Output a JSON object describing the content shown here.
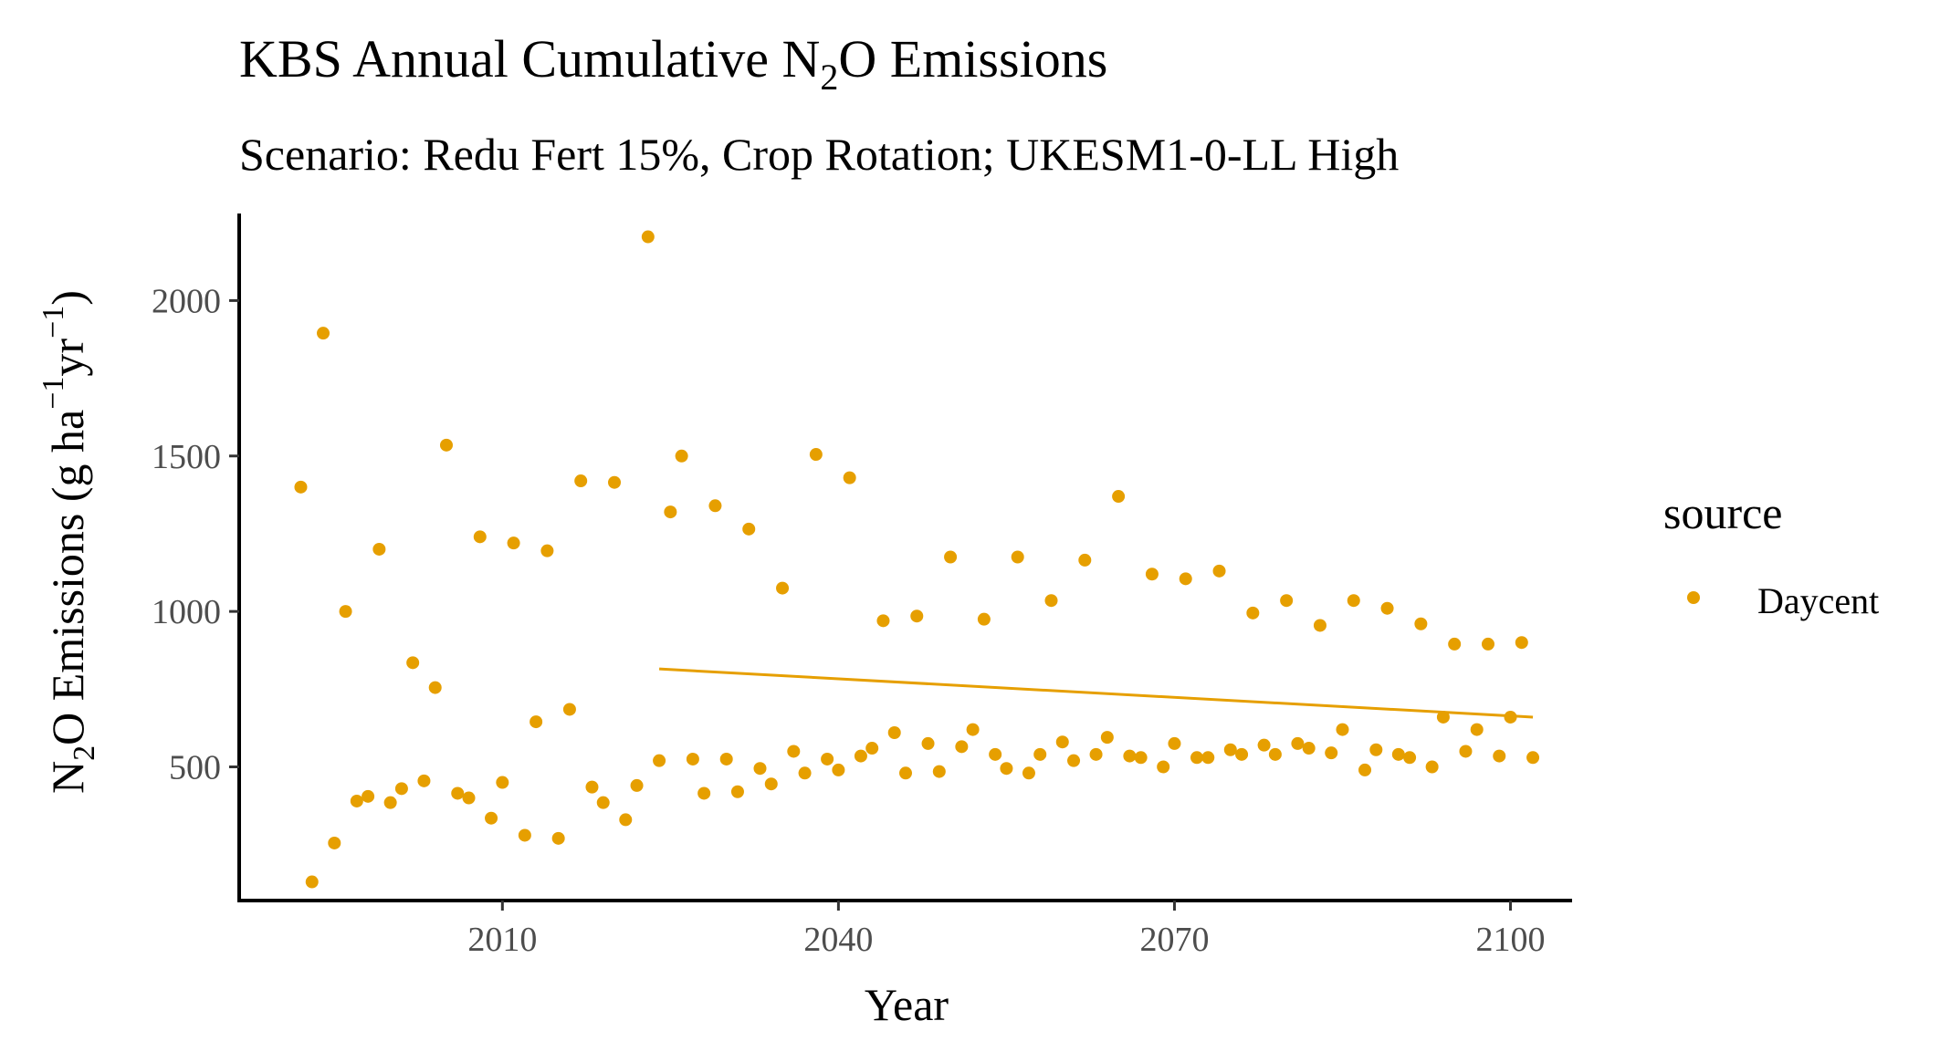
{
  "chart_data": {
    "type": "scatter",
    "title_main": "KBS Annual Cumulative N",
    "title_sub2": "2",
    "title_rest": "O Emissions",
    "subtitle": "Scenario: Redu Fert 15%, Crop Rotation; UKESM1-0-LL High",
    "xlabel": "Year",
    "ylabel_parts": {
      "n": "N",
      "sub2": "2",
      "rest": "O Emissions (g ha",
      "sup1": "−1",
      "yr": "yr",
      "sup2": "−1",
      "close": ")"
    },
    "xlim": [
      1986.5,
      2105.5
    ],
    "ylim": [
      70,
      2280
    ],
    "x_ticks": [
      2010,
      2040,
      2070,
      2100
    ],
    "y_ticks": [
      500,
      1000,
      1500,
      2000
    ],
    "grid": false,
    "legend": {
      "title": "source",
      "placement": "right"
    },
    "series": [
      {
        "name": "Daycent",
        "color": "#E69F00",
        "points": [
          [
            1992,
            1400
          ],
          [
            1993,
            130
          ],
          [
            1994,
            1895
          ],
          [
            1995,
            255
          ],
          [
            1996,
            1000
          ],
          [
            1997,
            390
          ],
          [
            1998,
            405
          ],
          [
            1999,
            1200
          ],
          [
            2000,
            385
          ],
          [
            2001,
            430
          ],
          [
            2002,
            835
          ],
          [
            2003,
            455
          ],
          [
            2004,
            755
          ],
          [
            2005,
            1535
          ],
          [
            2006,
            415
          ],
          [
            2007,
            400
          ],
          [
            2008,
            1240
          ],
          [
            2009,
            335
          ],
          [
            2010,
            450
          ],
          [
            2011,
            1220
          ],
          [
            2012,
            280
          ],
          [
            2013,
            645
          ],
          [
            2014,
            1195
          ],
          [
            2015,
            270
          ],
          [
            2016,
            685
          ],
          [
            2017,
            1420
          ],
          [
            2018,
            435
          ],
          [
            2019,
            385
          ],
          [
            2020,
            1415
          ],
          [
            2021,
            330
          ],
          [
            2022,
            440
          ],
          [
            2023,
            2205
          ],
          [
            2024,
            520
          ],
          [
            2025,
            1320
          ],
          [
            2026,
            1500
          ],
          [
            2027,
            525
          ],
          [
            2028,
            415
          ],
          [
            2029,
            1340
          ],
          [
            2030,
            525
          ],
          [
            2031,
            420
          ],
          [
            2032,
            1265
          ],
          [
            2033,
            495
          ],
          [
            2034,
            445
          ],
          [
            2035,
            1075
          ],
          [
            2036,
            550
          ],
          [
            2037,
            480
          ],
          [
            2038,
            1505
          ],
          [
            2039,
            525
          ],
          [
            2040,
            490
          ],
          [
            2041,
            1430
          ],
          [
            2042,
            535
          ],
          [
            2043,
            560
          ],
          [
            2044,
            970
          ],
          [
            2045,
            610
          ],
          [
            2046,
            480
          ],
          [
            2047,
            985
          ],
          [
            2048,
            575
          ],
          [
            2049,
            485
          ],
          [
            2050,
            1175
          ],
          [
            2051,
            565
          ],
          [
            2052,
            620
          ],
          [
            2053,
            975
          ],
          [
            2054,
            540
          ],
          [
            2055,
            495
          ],
          [
            2056,
            1175
          ],
          [
            2057,
            480
          ],
          [
            2058,
            540
          ],
          [
            2059,
            1035
          ],
          [
            2060,
            580
          ],
          [
            2061,
            520
          ],
          [
            2062,
            1165
          ],
          [
            2063,
            540
          ],
          [
            2064,
            595
          ],
          [
            2065,
            1370
          ],
          [
            2066,
            535
          ],
          [
            2067,
            530
          ],
          [
            2068,
            1120
          ],
          [
            2069,
            500
          ],
          [
            2070,
            575
          ],
          [
            2071,
            1105
          ],
          [
            2072,
            530
          ],
          [
            2073,
            530
          ],
          [
            2074,
            1130
          ],
          [
            2075,
            555
          ],
          [
            2076,
            540
          ],
          [
            2077,
            995
          ],
          [
            2078,
            570
          ],
          [
            2079,
            540
          ],
          [
            2080,
            1035
          ],
          [
            2081,
            575
          ],
          [
            2082,
            560
          ],
          [
            2083,
            955
          ],
          [
            2084,
            545
          ],
          [
            2085,
            620
          ],
          [
            2086,
            1035
          ],
          [
            2087,
            490
          ],
          [
            2088,
            555
          ],
          [
            2089,
            1010
          ],
          [
            2090,
            540
          ],
          [
            2091,
            530
          ],
          [
            2092,
            960
          ],
          [
            2093,
            500
          ],
          [
            2094,
            660
          ],
          [
            2095,
            895
          ],
          [
            2096,
            550
          ],
          [
            2097,
            620
          ],
          [
            2098,
            895
          ],
          [
            2099,
            535
          ],
          [
            2100,
            660
          ],
          [
            2101,
            900
          ],
          [
            2102,
            530
          ]
        ]
      }
    ],
    "trend_line": {
      "x": [
        2024,
        2102
      ],
      "y": [
        815,
        660
      ],
      "color": "#E69F00"
    }
  }
}
